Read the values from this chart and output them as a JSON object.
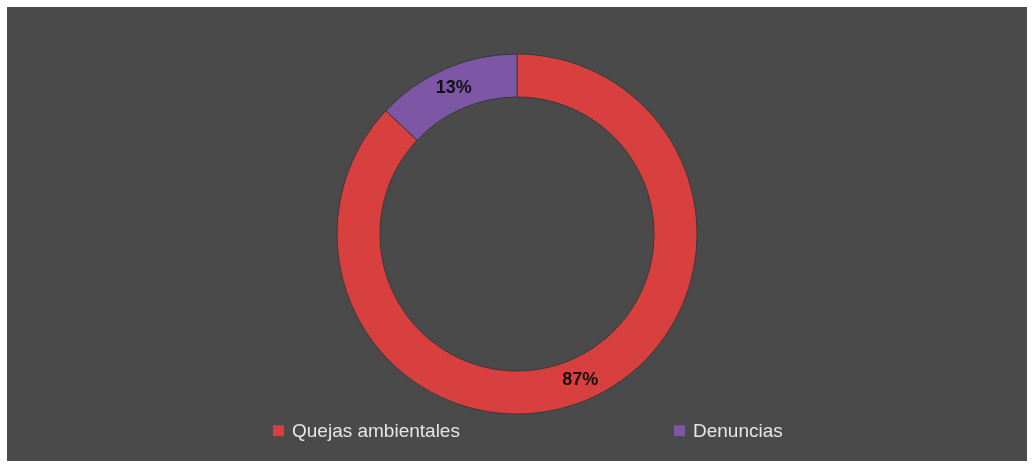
{
  "chart_data": {
    "type": "donut",
    "categories": [
      "Quejas ambientales",
      "Denuncias"
    ],
    "values": [
      87,
      13
    ],
    "colors": [
      "#d7403e",
      "#7d56a6"
    ],
    "value_labels": [
      "87%",
      "13%"
    ],
    "legend": "bottom"
  }
}
